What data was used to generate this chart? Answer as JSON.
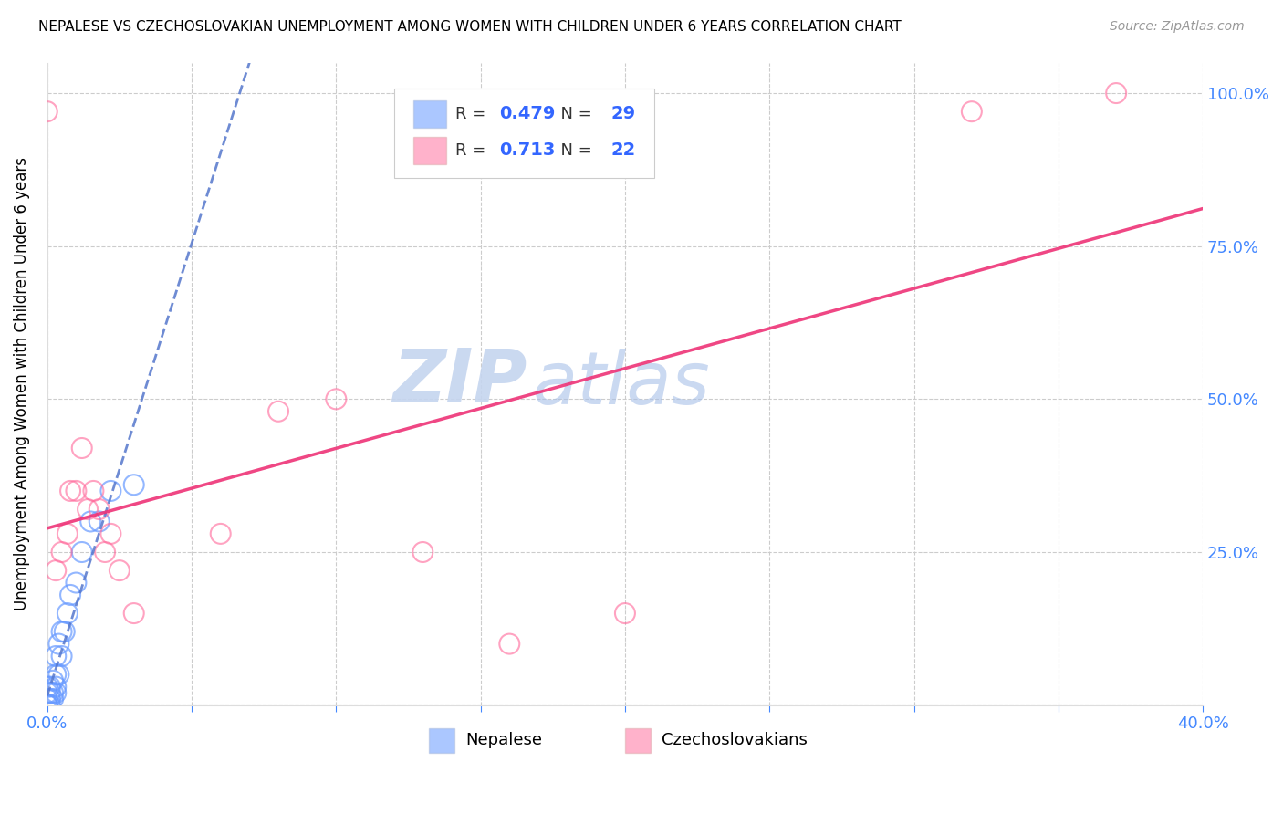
{
  "title": "NEPALESE VS CZECHOSLOVAKIAN UNEMPLOYMENT AMONG WOMEN WITH CHILDREN UNDER 6 YEARS CORRELATION CHART",
  "source": "Source: ZipAtlas.com",
  "ylabel": "Unemployment Among Women with Children Under 6 years",
  "xlim": [
    0.0,
    0.4
  ],
  "ylim": [
    0.0,
    1.05
  ],
  "xticks": [
    0.0,
    0.05,
    0.1,
    0.15,
    0.2,
    0.25,
    0.3,
    0.35,
    0.4
  ],
  "yticks": [
    0.0,
    0.25,
    0.5,
    0.75,
    1.0
  ],
  "nepalese_R": 0.479,
  "nepalese_N": 29,
  "czech_R": 0.713,
  "czech_N": 22,
  "nepalese_color": "#6699ff",
  "czech_color": "#ff6699",
  "nepalese_line_color": "#5577cc",
  "czech_line_color": "#ee3377",
  "watermark_zip": "ZIP",
  "watermark_atlas": "atlas",
  "background_color": "#ffffff",
  "grid_color": "#cccccc",
  "nepalese_x": [
    0.0,
    0.0,
    0.0,
    0.0,
    0.0,
    0.001,
    0.001,
    0.001,
    0.001,
    0.002,
    0.002,
    0.002,
    0.003,
    0.003,
    0.003,
    0.003,
    0.004,
    0.004,
    0.005,
    0.005,
    0.006,
    0.007,
    0.008,
    0.01,
    0.012,
    0.015,
    0.018,
    0.022,
    0.03
  ],
  "nepalese_y": [
    0.0,
    0.0,
    0.01,
    0.02,
    0.03,
    0.0,
    0.01,
    0.02,
    0.03,
    0.01,
    0.02,
    0.04,
    0.02,
    0.03,
    0.05,
    0.08,
    0.05,
    0.1,
    0.08,
    0.12,
    0.12,
    0.15,
    0.18,
    0.2,
    0.25,
    0.3,
    0.3,
    0.35,
    0.36
  ],
  "czech_x": [
    0.0,
    0.003,
    0.005,
    0.007,
    0.008,
    0.01,
    0.012,
    0.014,
    0.016,
    0.018,
    0.02,
    0.022,
    0.025,
    0.03,
    0.06,
    0.08,
    0.1,
    0.13,
    0.16,
    0.2,
    0.32,
    0.37
  ],
  "czech_y": [
    0.97,
    0.22,
    0.25,
    0.28,
    0.35,
    0.35,
    0.42,
    0.32,
    0.35,
    0.32,
    0.25,
    0.28,
    0.22,
    0.15,
    0.28,
    0.48,
    0.5,
    0.25,
    0.1,
    0.15,
    0.97,
    1.0
  ]
}
